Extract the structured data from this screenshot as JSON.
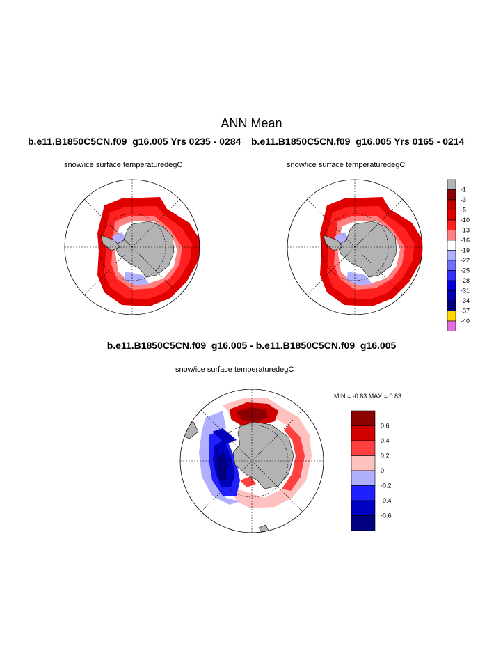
{
  "title": "ANN Mean",
  "panels": [
    {
      "title": "b.e11.B1850C5CN.f09_g16.005  Yrs 0235 - 0284",
      "variable": "snow/ice surface temperature",
      "units": "degC"
    },
    {
      "title": "b.e11.B1850C5CN.f09_g16.005  Yrs 0165 - 0214",
      "variable": "snow/ice surface temperature",
      "units": "degC"
    },
    {
      "title": "b.e11.B1850C5CN.f09_g16.005 - b.e11.B1850C5CN.f09_g16.005",
      "variable": "snow/ice surface temperature",
      "units": "degC"
    }
  ],
  "diff_stats": {
    "text": "MIN =   -0.83 MAX =    0.83",
    "min": -0.83,
    "max": 0.83
  },
  "colorbar_main": {
    "labels": [
      "-1",
      "-3",
      "-5",
      "-10",
      "-13",
      "-16",
      "-19",
      "-22",
      "-25",
      "-28",
      "-31",
      "-34",
      "-37",
      "-40"
    ],
    "colors": [
      "#b3b3b3",
      "#8b0000",
      "#c00000",
      "#e00000",
      "#ff2020",
      "#ff8080",
      "#ffffff",
      "#b0b0ff",
      "#7070ff",
      "#3030ff",
      "#0000e0",
      "#0000b0",
      "#00007a",
      "#ffd700",
      "#e070e0"
    ]
  },
  "colorbar_diff": {
    "labels": [
      "0.6",
      "0.4",
      "0.2",
      "0",
      "-0.2",
      "-0.4",
      "-0.6"
    ],
    "colors": [
      "#8b0000",
      "#d00000",
      "#ff4040",
      "#ffc0c0",
      "#b0b0ff",
      "#2020ff",
      "#0000c0",
      "#000080"
    ]
  },
  "map_colors": {
    "land": "#b3b3b3",
    "ocean": "#ffffff"
  }
}
